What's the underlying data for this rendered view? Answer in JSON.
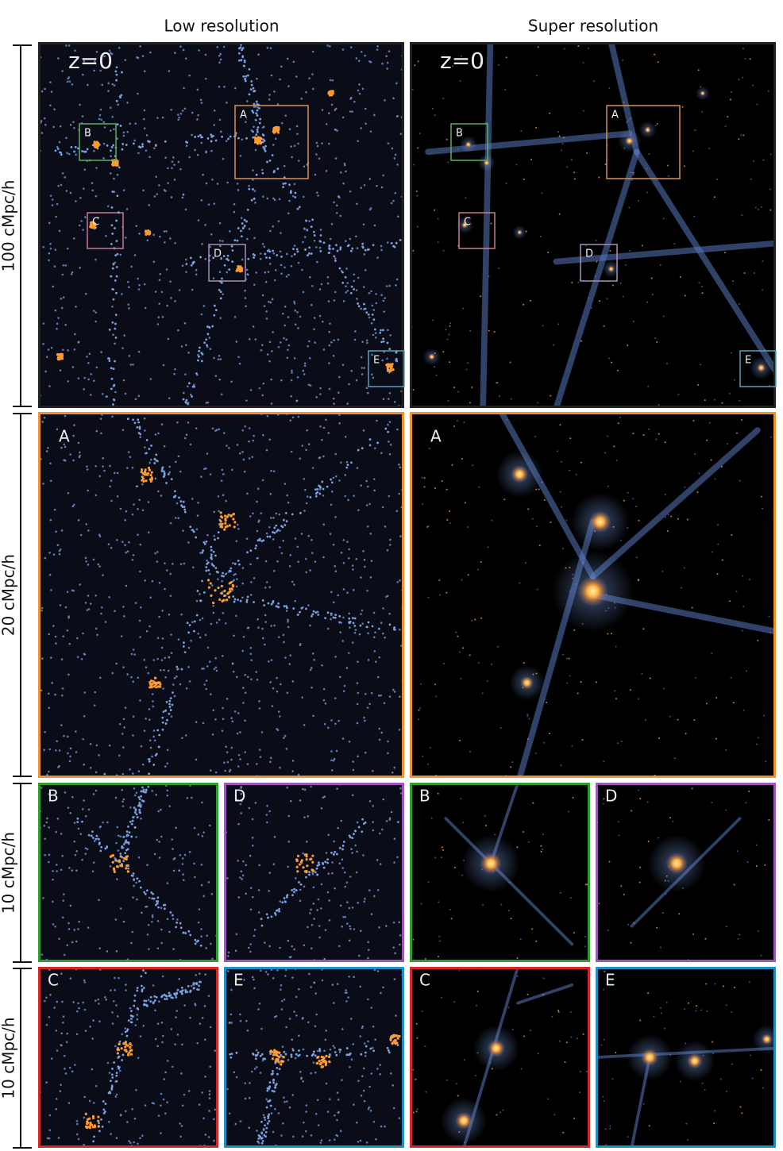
{
  "columns": [
    "Low resolution",
    "Super resolution"
  ],
  "scale_labels": [
    "100 cMpc/h",
    "20 cMpc/h",
    "10 cMpc/h",
    "10 cMpc/h"
  ],
  "overview": {
    "redshift": "z=0",
    "regions": [
      "A",
      "B",
      "C",
      "D",
      "E"
    ]
  },
  "zooms": {
    "labels": [
      "A",
      "B",
      "D",
      "C",
      "E"
    ]
  }
}
